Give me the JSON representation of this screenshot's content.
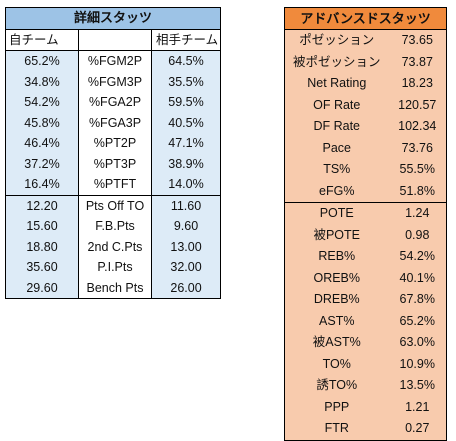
{
  "detail": {
    "title": "詳細スタッツ",
    "header_own": "自チーム",
    "header_mid": "",
    "header_opp": "相手チーム",
    "rows1": [
      {
        "own": "65.2%",
        "stat": "%FGM2P",
        "opp": "64.5%"
      },
      {
        "own": "34.8%",
        "stat": "%FGM3P",
        "opp": "35.5%"
      },
      {
        "own": "54.2%",
        "stat": "%FGA2P",
        "opp": "59.5%"
      },
      {
        "own": "45.8%",
        "stat": "%FGA3P",
        "opp": "40.5%"
      },
      {
        "own": "46.4%",
        "stat": "%PT2P",
        "opp": "47.1%"
      },
      {
        "own": "37.2%",
        "stat": "%PT3P",
        "opp": "38.9%"
      },
      {
        "own": "16.4%",
        "stat": "%PTFT",
        "opp": "14.0%"
      }
    ],
    "rows2": [
      {
        "own": "12.20",
        "stat": "Pts Off TO",
        "opp": "11.60"
      },
      {
        "own": "15.60",
        "stat": "F.B.Pts",
        "opp": "9.60"
      },
      {
        "own": "18.80",
        "stat": "2nd C.Pts",
        "opp": "13.00"
      },
      {
        "own": "35.60",
        "stat": "P.I.Pts",
        "opp": "32.00"
      },
      {
        "own": "29.60",
        "stat": "Bench Pts",
        "opp": "26.00"
      }
    ]
  },
  "advanced": {
    "title": "アドバンスドスタッツ",
    "rows1": [
      {
        "label": "ポゼッション",
        "value": "73.65"
      },
      {
        "label": "被ポゼッション",
        "value": "73.87"
      },
      {
        "label": "Net Rating",
        "value": "18.23"
      },
      {
        "label": "OF Rate",
        "value": "120.57"
      },
      {
        "label": "DF Rate",
        "value": "102.34"
      },
      {
        "label": "Pace",
        "value": "73.76"
      },
      {
        "label": "TS%",
        "value": "55.5%"
      },
      {
        "label": "eFG%",
        "value": "51.8%"
      }
    ],
    "rows2": [
      {
        "label": "POTE",
        "value": "1.24"
      },
      {
        "label": "被POTE",
        "value": "0.98"
      },
      {
        "label": "REB%",
        "value": "54.2%"
      },
      {
        "label": "OREB%",
        "value": "40.1%"
      },
      {
        "label": "DREB%",
        "value": "67.8%"
      },
      {
        "label": "AST%",
        "value": "65.2%"
      },
      {
        "label": "被AST%",
        "value": "63.0%"
      },
      {
        "label": "TO%",
        "value": "10.9%"
      },
      {
        "label": "誘TO%",
        "value": "13.5%"
      },
      {
        "label": "PPP",
        "value": "1.21"
      },
      {
        "label": "FTR",
        "value": "0.27"
      }
    ]
  },
  "colors": {
    "detail_title_bg": "#9dc3e6",
    "detail_cell_bg": "#ddebf7",
    "advanced_title_bg": "#f08a3c",
    "advanced_cell_bg": "#f8cbad"
  }
}
